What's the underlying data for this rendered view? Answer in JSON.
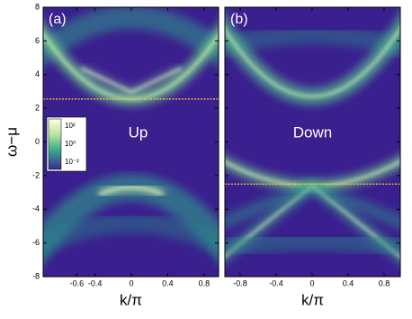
{
  "chart_data": [
    {
      "type": "heatmap",
      "panel_label": "(a)",
      "annotation": "Up",
      "xlabel": "k/π",
      "ylabel": "ω−μ",
      "xlim": [
        -0.97,
        0.96
      ],
      "ylim": [
        -8,
        8
      ],
      "xticks": [
        -0.6,
        -0.4,
        0.0,
        0.4,
        0.8
      ],
      "yticks": [
        8,
        6,
        4,
        2,
        0,
        -2,
        -4,
        -6,
        -8
      ],
      "fermi_level": 2.55,
      "fermi_color": "#ffd21e",
      "colorbar_ticks": [
        "10²",
        "10⁰",
        "10⁻²"
      ]
    },
    {
      "type": "heatmap",
      "panel_label": "(b)",
      "annotation": "Down",
      "xlabel": "k/π",
      "xlim": [
        -0.97,
        0.98
      ],
      "ylim": [
        -8,
        8
      ],
      "xticks": [
        -0.8,
        -0.4,
        0.0,
        0.4,
        0.8
      ],
      "yticks": [
        8,
        6,
        4,
        2,
        0,
        -2,
        -4,
        -6,
        -8
      ],
      "fermi_level": -2.5,
      "fermi_color": "#ffd21e"
    }
  ]
}
